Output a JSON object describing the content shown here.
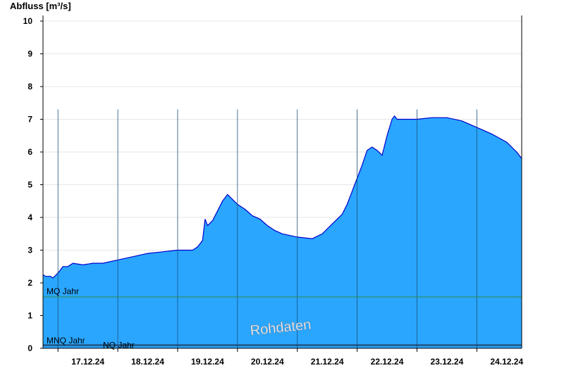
{
  "chart_data": {
    "type": "area",
    "ylabel": "Abfluss [m³/s]",
    "xlabel": "",
    "ylim": [
      0,
      10
    ],
    "yticks": [
      "0",
      "1",
      "2",
      "3",
      "4",
      "5",
      "6",
      "7",
      "8",
      "9",
      "10"
    ],
    "x_start": "2024-12-16 18:00",
    "x_end": "2024-12-24 18:00",
    "day_labels": [
      "17.12.24",
      "18.12.24",
      "19.12.24",
      "20.12.24",
      "21.12.24",
      "22.12.24",
      "23.12.24",
      "24.12.24"
    ],
    "grid": true,
    "series": [
      {
        "values_time": [
          "2024-12-16 18:00",
          "2024-12-16 19:00",
          "2024-12-16 21:00",
          "2024-12-16 22:00",
          "2024-12-17 00:00",
          "2024-12-17 02:00",
          "2024-12-17 04:00",
          "2024-12-17 06:00",
          "2024-12-17 10:00",
          "2024-12-17 14:00",
          "2024-12-17 18:00",
          "2024-12-18 00:00",
          "2024-12-18 06:00",
          "2024-12-18 12:00",
          "2024-12-18 18:00",
          "2024-12-19 00:00",
          "2024-12-19 06:00",
          "2024-12-19 08:00",
          "2024-12-19 10:00",
          "2024-12-19 11:00",
          "2024-12-19 12:00",
          "2024-12-19 14:00",
          "2024-12-19 16:00",
          "2024-12-19 18:00",
          "2024-12-19 20:00",
          "2024-12-19 22:00",
          "2024-12-20 00:00",
          "2024-12-20 03:00",
          "2024-12-20 06:00",
          "2024-12-20 09:00",
          "2024-12-20 12:00",
          "2024-12-20 15:00",
          "2024-12-20 18:00",
          "2024-12-21 00:00",
          "2024-12-21 06:00",
          "2024-12-21 10:00",
          "2024-12-21 14:00",
          "2024-12-21 18:00",
          "2024-12-21 20:00",
          "2024-12-21 22:00",
          "2024-12-22 00:00",
          "2024-12-22 02:00",
          "2024-12-22 04:00",
          "2024-12-22 06:00",
          "2024-12-22 08:00",
          "2024-12-22 10:00",
          "2024-12-22 12:00",
          "2024-12-22 14:00",
          "2024-12-22 15:00",
          "2024-12-22 16:00",
          "2024-12-23 00:00",
          "2024-12-23 06:00",
          "2024-12-23 12:00",
          "2024-12-23 18:00",
          "2024-12-24 00:00",
          "2024-12-24 06:00",
          "2024-12-24 12:00",
          "2024-12-24 16:00",
          "2024-12-24 18:00"
        ],
        "values": [
          2.25,
          2.2,
          2.2,
          2.15,
          2.3,
          2.5,
          2.5,
          2.6,
          2.55,
          2.6,
          2.6,
          2.7,
          2.8,
          2.9,
          2.95,
          3.0,
          3.0,
          3.1,
          3.3,
          3.95,
          3.75,
          3.9,
          4.2,
          4.5,
          4.7,
          4.55,
          4.4,
          4.25,
          4.05,
          3.95,
          3.75,
          3.6,
          3.5,
          3.4,
          3.35,
          3.5,
          3.8,
          4.1,
          4.4,
          4.8,
          5.2,
          5.6,
          6.05,
          6.15,
          6.05,
          5.9,
          6.5,
          7.0,
          7.1,
          7.0,
          7.0,
          7.05,
          7.05,
          6.95,
          6.75,
          6.55,
          6.3,
          6.0,
          5.8
        ]
      }
    ],
    "reference_lines": [
      {
        "label": "MQ Jahr",
        "value": 1.57,
        "color": "#2f8f3f"
      },
      {
        "label": "MNQ Jahr",
        "value": 0.11,
        "color": "#1f3d5c"
      },
      {
        "label": "NQ Jahr",
        "value": 0.08,
        "color": "#1f3d5c"
      }
    ],
    "watermark": "Rohdaten",
    "colors": {
      "area_fill": "#2aa6ff",
      "area_line": "#0000cc",
      "grid": "#e6e6e6",
      "axis": "#000000",
      "day_separator": "#1b4f7a"
    }
  }
}
